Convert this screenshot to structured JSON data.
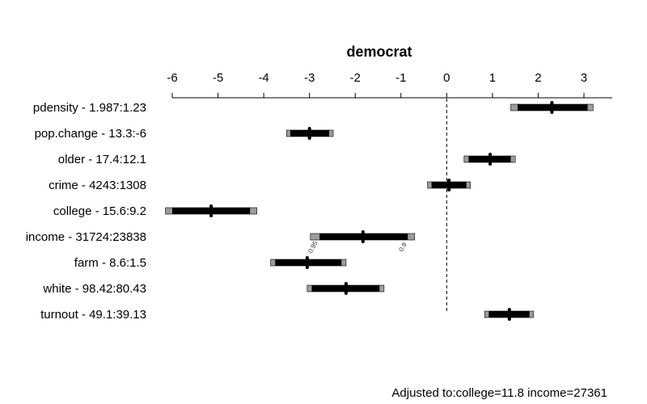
{
  "chart_data": {
    "type": "interval",
    "title": "democrat",
    "xlim": [
      -6.2,
      3.5
    ],
    "xticks": [
      -6,
      -5,
      -4,
      -3,
      -2,
      -1,
      0,
      1,
      2,
      3
    ],
    "xtick_labels": [
      "-6",
      "-5",
      "-4",
      "-3",
      "-2",
      "-1",
      "0",
      "1",
      "2",
      "3"
    ],
    "reference_line_x": 0,
    "rows": [
      {
        "label": "pdensity - 1.987:1.23",
        "outer": [
          1.4,
          3.2
        ],
        "inner": [
          1.55,
          3.08
        ],
        "point": 2.3
      },
      {
        "label": "pop.change - 13.3:-6",
        "outer": [
          -3.5,
          -2.48
        ],
        "inner": [
          -3.42,
          -2.57
        ],
        "point": -3.0
      },
      {
        "label": "older - 17.4:12.1",
        "outer": [
          0.38,
          1.5
        ],
        "inner": [
          0.48,
          1.4
        ],
        "point": 0.95
      },
      {
        "label": "crime - 4243:1308",
        "outer": [
          -0.42,
          0.52
        ],
        "inner": [
          -0.33,
          0.43
        ],
        "point": 0.05
      },
      {
        "label": "college - 15.6:9.2",
        "outer": [
          -6.15,
          -4.15
        ],
        "inner": [
          -6.0,
          -4.3
        ],
        "point": -5.15
      },
      {
        "label": "income - 31724:23838",
        "outer": [
          -2.98,
          -0.7
        ],
        "inner": [
          -2.78,
          -0.85
        ],
        "point": -1.83,
        "interval_labels": [
          "0.95",
          "0.9"
        ]
      },
      {
        "label": "farm - 8.6:1.5",
        "outer": [
          -3.85,
          -2.2
        ],
        "inner": [
          -3.75,
          -2.3
        ],
        "point": -3.05
      },
      {
        "label": "white - 98.42:80.43",
        "outer": [
          -3.05,
          -1.37
        ],
        "inner": [
          -2.95,
          -1.47
        ],
        "point": -2.2
      },
      {
        "label": "turnout - 49.1:39.13",
        "outer": [
          0.83,
          1.9
        ],
        "inner": [
          0.92,
          1.81
        ],
        "point": 1.37
      }
    ],
    "footnote": "Adjusted to:college=11.8 income=27361",
    "colors": {
      "outer": "#9c9c9c",
      "inner": "#000000",
      "point": "#000000",
      "axis": "#000000"
    }
  }
}
